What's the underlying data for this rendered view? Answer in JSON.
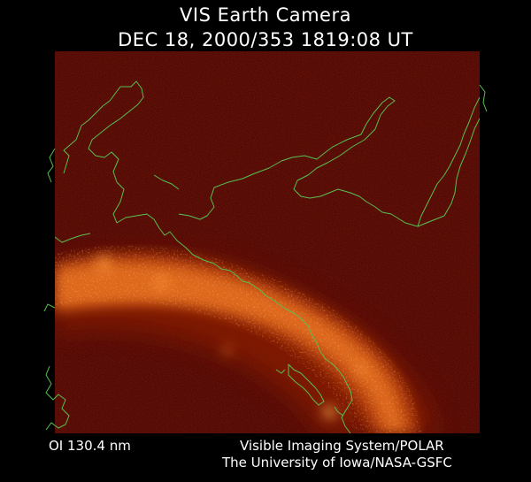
{
  "header": {
    "title": "VIS Earth Camera",
    "timestamp": "DEC 18, 2000/353 1819:08 UT"
  },
  "image": {
    "background_color": "#4a0202",
    "coastline_color": "#58c050",
    "aurora_color": "#ff9a3a"
  },
  "footer": {
    "filter": "OI  130.4 nm",
    "instrument": "Visible Imaging System/POLAR",
    "institution": "The University of Iowa/NASA-GSFC"
  }
}
